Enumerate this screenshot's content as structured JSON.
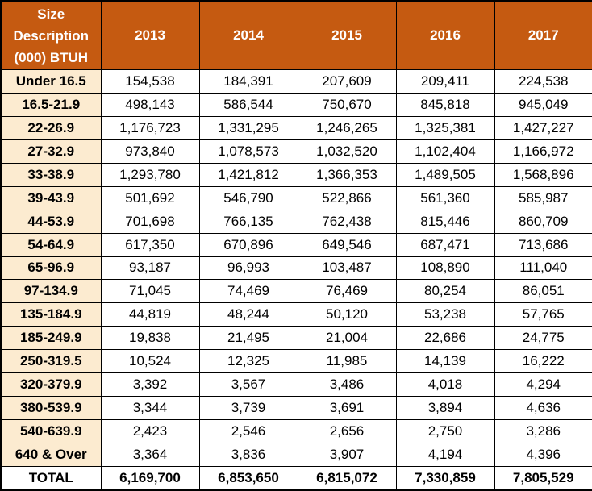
{
  "chart_data": {
    "type": "table",
    "title": "",
    "header": {
      "size_label_lines": [
        "Size",
        "Description",
        "(000) BTUH"
      ],
      "years": [
        "2013",
        "2014",
        "2015",
        "2016",
        "2017"
      ]
    },
    "rows": [
      {
        "label": "Under 16.5",
        "values": [
          "154,538",
          "184,391",
          "207,609",
          "209,411",
          "224,538"
        ]
      },
      {
        "label": "16.5-21.9",
        "values": [
          "498,143",
          "586,544",
          "750,670",
          "845,818",
          "945,049"
        ]
      },
      {
        "label": "22-26.9",
        "values": [
          "1,176,723",
          "1,331,295",
          "1,246,265",
          "1,325,381",
          "1,427,227"
        ]
      },
      {
        "label": "27-32.9",
        "values": [
          "973,840",
          "1,078,573",
          "1,032,520",
          "1,102,404",
          "1,166,972"
        ]
      },
      {
        "label": "33-38.9",
        "values": [
          "1,293,780",
          "1,421,812",
          "1,366,353",
          "1,489,505",
          "1,568,896"
        ]
      },
      {
        "label": "39-43.9",
        "values": [
          "501,692",
          "546,790",
          "522,866",
          "561,360",
          "585,987"
        ]
      },
      {
        "label": "44-53.9",
        "values": [
          "701,698",
          "766,135",
          "762,438",
          "815,446",
          "860,709"
        ]
      },
      {
        "label": "54-64.9",
        "values": [
          "617,350",
          "670,896",
          "649,546",
          "687,471",
          "713,686"
        ]
      },
      {
        "label": "65-96.9",
        "values": [
          "93,187",
          "96,993",
          "103,487",
          "108,890",
          "111,040"
        ]
      },
      {
        "label": "97-134.9",
        "values": [
          "71,045",
          "74,469",
          "76,469",
          "80,254",
          "86,051"
        ]
      },
      {
        "label": "135-184.9",
        "values": [
          "44,819",
          "48,244",
          "50,120",
          "53,238",
          "57,765"
        ]
      },
      {
        "label": "185-249.9",
        "values": [
          "19,838",
          "21,495",
          "21,004",
          "22,686",
          "24,775"
        ]
      },
      {
        "label": "250-319.5",
        "values": [
          "10,524",
          "12,325",
          "11,985",
          "14,139",
          "16,222"
        ]
      },
      {
        "label": "320-379.9",
        "values": [
          "3,392",
          "3,567",
          "3,486",
          "4,018",
          "4,294"
        ]
      },
      {
        "label": "380-539.9",
        "values": [
          "3,344",
          "3,739",
          "3,691",
          "3,894",
          "4,636"
        ]
      },
      {
        "label": "540-639.9",
        "values": [
          "2,423",
          "2,546",
          "2,656",
          "2,750",
          "3,286"
        ]
      },
      {
        "label": "640 & Over",
        "values": [
          "3,364",
          "3,836",
          "3,907",
          "4,194",
          "4,396"
        ]
      }
    ],
    "total": {
      "label": "TOTAL",
      "values": [
        "6,169,700",
        "6,853,650",
        "6,815,072",
        "7,330,859",
        "7,805,529"
      ]
    },
    "colors": {
      "header_bg": "#c55a11",
      "header_text": "#ffffff",
      "label_bg": "#fcebd0",
      "border": "#000000"
    }
  }
}
